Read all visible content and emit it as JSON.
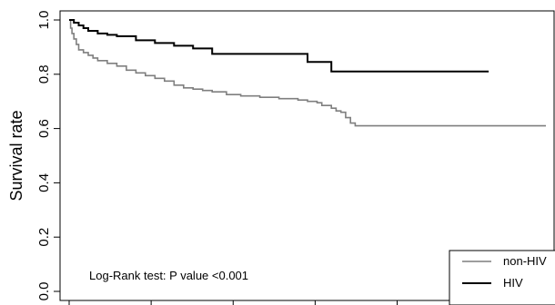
{
  "chart_data": {
    "type": "line",
    "ylabel": "Survival rate",
    "xlabel": "",
    "ylim": [
      0.0,
      1.0
    ],
    "xlim": [
      0,
      1
    ],
    "yticks": [
      0.0,
      0.2,
      0.4,
      0.6,
      0.8,
      1.0
    ],
    "ytick_labels": [
      "0.0",
      "0.2",
      "0.4",
      "0.6",
      "0.8",
      "1.0"
    ],
    "annotation": "Log-Rank test: P value <0.001",
    "legend_position": "bottom-right",
    "series": [
      {
        "name": "non-HIV",
        "color": "#7f7f7f",
        "x": [
          0.0,
          0.003,
          0.006,
          0.01,
          0.015,
          0.02,
          0.03,
          0.04,
          0.05,
          0.06,
          0.08,
          0.1,
          0.12,
          0.14,
          0.16,
          0.18,
          0.2,
          0.22,
          0.24,
          0.26,
          0.28,
          0.3,
          0.33,
          0.36,
          0.4,
          0.44,
          0.48,
          0.5,
          0.52,
          0.53,
          0.55,
          0.56,
          0.57,
          0.58,
          0.59,
          0.6,
          0.62,
          0.7,
          0.8,
          0.9,
          1.0
        ],
        "y": [
          1.0,
          0.97,
          0.95,
          0.93,
          0.91,
          0.89,
          0.88,
          0.87,
          0.86,
          0.85,
          0.84,
          0.83,
          0.815,
          0.805,
          0.795,
          0.785,
          0.775,
          0.76,
          0.75,
          0.745,
          0.74,
          0.735,
          0.725,
          0.72,
          0.715,
          0.71,
          0.705,
          0.7,
          0.695,
          0.685,
          0.675,
          0.665,
          0.66,
          0.64,
          0.62,
          0.61,
          0.61,
          0.61,
          0.61,
          0.61,
          0.61
        ]
      },
      {
        "name": "HIV",
        "color": "#000000",
        "x": [
          0.0,
          0.01,
          0.02,
          0.03,
          0.04,
          0.06,
          0.08,
          0.1,
          0.14,
          0.18,
          0.22,
          0.26,
          0.3,
          0.35,
          0.42,
          0.5,
          0.55,
          0.6,
          0.7,
          0.8,
          0.88
        ],
        "y": [
          1.0,
          0.99,
          0.98,
          0.97,
          0.96,
          0.95,
          0.945,
          0.94,
          0.925,
          0.915,
          0.905,
          0.895,
          0.875,
          0.875,
          0.875,
          0.845,
          0.81,
          0.81,
          0.81,
          0.81,
          0.81
        ]
      }
    ]
  }
}
